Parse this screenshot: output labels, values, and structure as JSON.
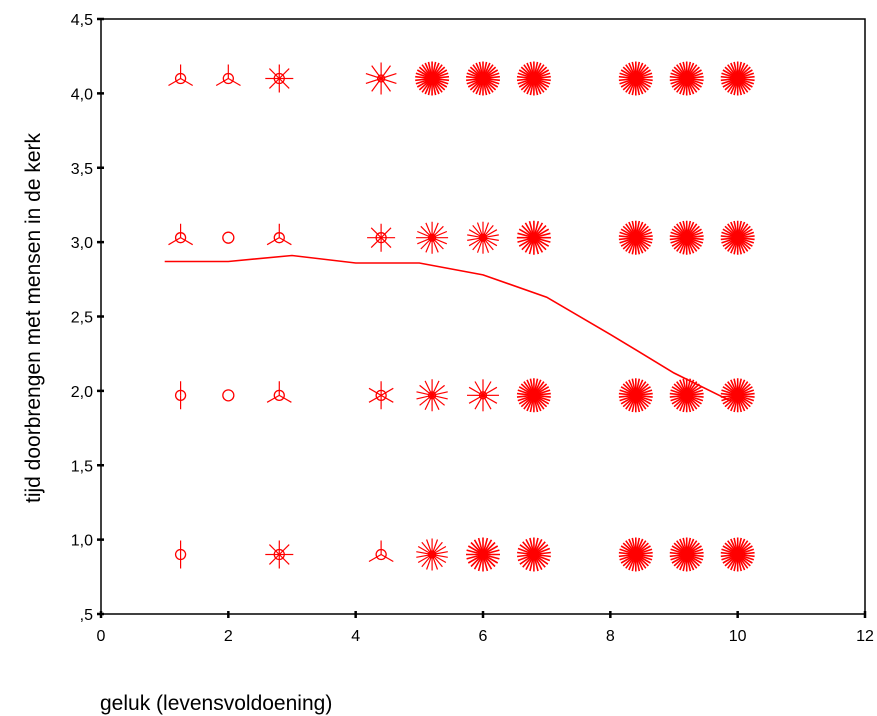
{
  "chart_data": {
    "type": "scatter",
    "xlabel": "geluk (levensvoldoening)",
    "ylabel": "tijd doorbrengen met mensen in de kerk",
    "xlim": [
      0,
      12
    ],
    "ylim": [
      0.5,
      4.5
    ],
    "x_ticks": [
      0,
      2,
      4,
      6,
      8,
      10,
      12
    ],
    "x_tick_labels": [
      "0",
      "2",
      "4",
      "6",
      "8",
      "10",
      "12"
    ],
    "y_ticks": [
      0.5,
      1.0,
      1.5,
      2.0,
      2.5,
      3.0,
      3.5,
      4.0,
      4.5
    ],
    "y_tick_labels": [
      ",5",
      "1,0",
      "1,5",
      "2,0",
      "2,5",
      "3,0",
      "3,5",
      "4,0",
      "4,5"
    ],
    "grid": false,
    "legend": "none",
    "marker_color": "#ff0000",
    "line_color": "#ff0000",
    "points": [
      {
        "x": 1.25,
        "y": 4.1,
        "count": 3
      },
      {
        "x": 2.0,
        "y": 4.1,
        "count": 3
      },
      {
        "x": 2.8,
        "y": 4.1,
        "count": 8
      },
      {
        "x": 4.4,
        "y": 4.1,
        "count": 10
      },
      {
        "x": 5.2,
        "y": 4.1,
        "count": 30
      },
      {
        "x": 6.0,
        "y": 4.1,
        "count": 30
      },
      {
        "x": 6.8,
        "y": 4.1,
        "count": 30
      },
      {
        "x": 8.4,
        "y": 4.1,
        "count": 30
      },
      {
        "x": 9.2,
        "y": 4.1,
        "count": 30
      },
      {
        "x": 10.0,
        "y": 4.1,
        "count": 30
      },
      {
        "x": 1.25,
        "y": 3.03,
        "count": 3
      },
      {
        "x": 2.0,
        "y": 3.03,
        "count": 1
      },
      {
        "x": 2.8,
        "y": 3.03,
        "count": 3
      },
      {
        "x": 4.4,
        "y": 3.03,
        "count": 8
      },
      {
        "x": 5.2,
        "y": 3.03,
        "count": 16
      },
      {
        "x": 6.0,
        "y": 3.03,
        "count": 18
      },
      {
        "x": 6.8,
        "y": 3.03,
        "count": 24
      },
      {
        "x": 8.4,
        "y": 3.03,
        "count": 30
      },
      {
        "x": 9.2,
        "y": 3.03,
        "count": 30
      },
      {
        "x": 10.0,
        "y": 3.03,
        "count": 30
      },
      {
        "x": 1.25,
        "y": 1.97,
        "count": 2
      },
      {
        "x": 2.0,
        "y": 1.97,
        "count": 1
      },
      {
        "x": 2.8,
        "y": 1.97,
        "count": 3
      },
      {
        "x": 4.4,
        "y": 1.97,
        "count": 6
      },
      {
        "x": 5.2,
        "y": 1.97,
        "count": 14
      },
      {
        "x": 6.0,
        "y": 1.97,
        "count": 12
      },
      {
        "x": 6.8,
        "y": 1.97,
        "count": 30
      },
      {
        "x": 8.4,
        "y": 1.97,
        "count": 30
      },
      {
        "x": 9.2,
        "y": 1.97,
        "count": 30
      },
      {
        "x": 10.0,
        "y": 1.97,
        "count": 30
      },
      {
        "x": 1.25,
        "y": 0.9,
        "count": 2
      },
      {
        "x": 2.8,
        "y": 0.9,
        "count": 8
      },
      {
        "x": 4.4,
        "y": 0.9,
        "count": 3
      },
      {
        "x": 5.2,
        "y": 0.9,
        "count": 18
      },
      {
        "x": 6.0,
        "y": 0.9,
        "count": 24
      },
      {
        "x": 6.8,
        "y": 0.9,
        "count": 26
      },
      {
        "x": 8.4,
        "y": 0.9,
        "count": 30
      },
      {
        "x": 9.2,
        "y": 0.9,
        "count": 30
      },
      {
        "x": 10.0,
        "y": 0.9,
        "count": 30
      }
    ],
    "fit_line": {
      "x": [
        1.0,
        2.0,
        3.0,
        4.0,
        5.0,
        6.0,
        7.0,
        8.0,
        9.0,
        9.9
      ],
      "y": [
        2.87,
        2.87,
        2.91,
        2.86,
        2.86,
        2.78,
        2.63,
        2.38,
        2.12,
        1.93
      ]
    }
  }
}
